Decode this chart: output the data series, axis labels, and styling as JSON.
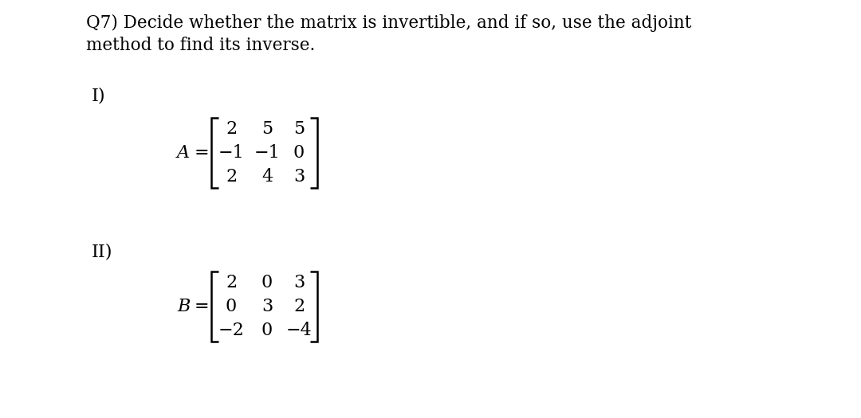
{
  "title_line1": "Q7) Decide whether the matrix is invertible, and if so, use the adjoint",
  "title_line2": "method to find its inverse.",
  "part_I_label": "I)",
  "part_II_label": "II)",
  "matrix_A_label": "A",
  "matrix_B_label": "B",
  "matrix_A": [
    [
      "2",
      "5",
      "5"
    ],
    [
      "−1",
      "−1",
      "0"
    ],
    [
      "2",
      "4",
      "3"
    ]
  ],
  "matrix_B": [
    [
      "2",
      "0",
      "3"
    ],
    [
      "0",
      "3",
      "2"
    ],
    [
      "−2",
      "0",
      "−4"
    ]
  ],
  "bg_color": "#ffffff",
  "text_color": "#000000",
  "font_size_title": 15.5,
  "font_size_label": 16.0,
  "font_size_matrix": 16.0,
  "font_family": "DejaVu Serif"
}
